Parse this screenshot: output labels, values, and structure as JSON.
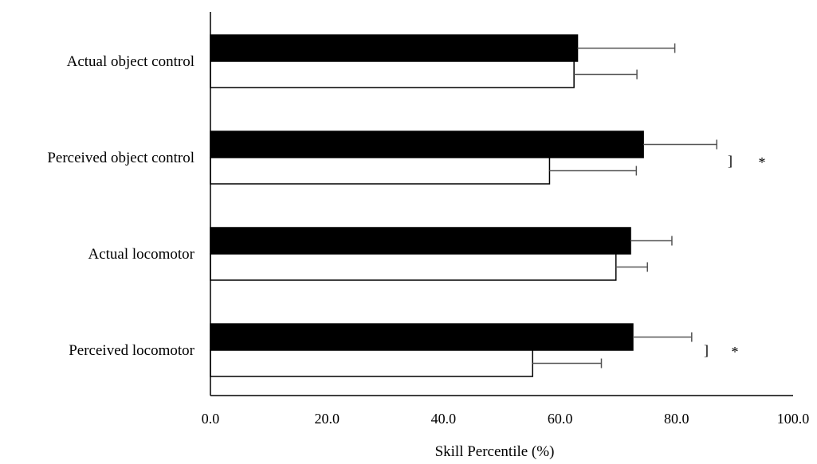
{
  "chart_data": {
    "type": "bar",
    "orientation": "horizontal",
    "categories": [
      "Actual object control",
      "Perceived object control",
      "Actual locomotor",
      "Perceived locomotor"
    ],
    "series": [
      {
        "color": "#000000",
        "values": [
          63.0,
          74.3,
          72.1,
          72.5
        ],
        "errors": [
          16.7,
          12.6,
          7.1,
          10.1
        ]
      },
      {
        "color": "#ffffff",
        "values": [
          62.4,
          58.2,
          69.6,
          55.3
        ],
        "errors": [
          10.8,
          14.9,
          5.4,
          11.8
        ]
      }
    ],
    "xlabel": "Skill Percentile (%)",
    "xlim": [
      0,
      100
    ],
    "xticks": [
      "0.0",
      "20.0",
      "40.0",
      "60.0",
      "80.0",
      "100.0"
    ],
    "grid": false,
    "annotations": [
      {
        "category": "Perceived object control",
        "bracket": "]",
        "marker": "*"
      },
      {
        "category": "Perceived locomotor",
        "bracket": "]",
        "marker": "*"
      }
    ]
  }
}
